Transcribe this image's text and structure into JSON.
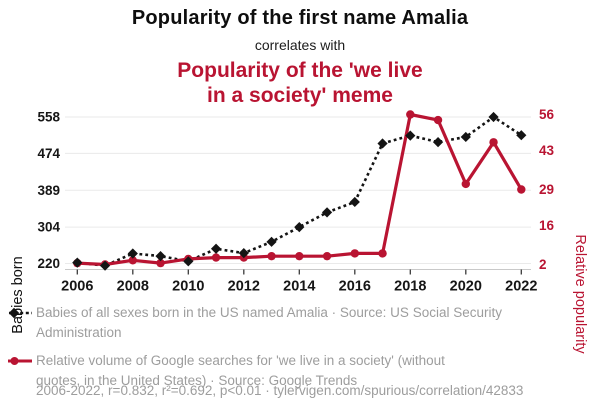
{
  "header": {
    "title": "Popularity of the first name Amalia",
    "subtitle": "correlates with",
    "secondary_title_line1": "Popularity of the 'we live",
    "secondary_title_line2": "in a society' meme"
  },
  "colors": {
    "accent_red": "#b91432",
    "series_black": "#141414",
    "gray_text": "#9d9d9d",
    "gridline": "#eaeaea",
    "axis_line": "#c9c9c9",
    "tick_mark": "#3a3a3a",
    "tick_label": "#161616"
  },
  "chart_data": {
    "type": "line",
    "x": [
      2006,
      2007,
      2008,
      2009,
      2010,
      2011,
      2012,
      2013,
      2014,
      2015,
      2016,
      2017,
      2018,
      2019,
      2020,
      2021,
      2022
    ],
    "series": [
      {
        "name": "Babies of all sexes born in the US named Amalia",
        "axis": "left",
        "style": "dashed",
        "marker": "diamond",
        "color": "#141414",
        "values": [
          222,
          215,
          243,
          237,
          225,
          254,
          244,
          270,
          304,
          338,
          362,
          497,
          515,
          500,
          512,
          558,
          516
        ]
      },
      {
        "name": "Relative volume of Google searches for 'we live in a society'",
        "axis": "right",
        "style": "solid",
        "marker": "circle",
        "color": "#b91432",
        "values": [
          2.5,
          2,
          3.5,
          2.5,
          4,
          4.5,
          4.5,
          5,
          5,
          5,
          6,
          6,
          56,
          54,
          31,
          46,
          29
        ]
      }
    ],
    "left_axis": {
      "label": "Babies born",
      "ticks": [
        220,
        304,
        389,
        474,
        558
      ],
      "range": [
        220,
        558
      ]
    },
    "right_axis": {
      "label": "Relative popularity",
      "ticks": [
        2,
        16,
        29,
        43,
        56
      ],
      "range": [
        2,
        56
      ]
    },
    "x_axis": {
      "tick_years": [
        2006,
        2008,
        2010,
        2012,
        2014,
        2016,
        2018,
        2020,
        2022
      ]
    },
    "grid": "horizontal",
    "legend_position": "bottom"
  },
  "legend": {
    "items": [
      {
        "icon": "black-diamond-dashed-line",
        "lines": [
          "Babies of all sexes born in the US named Amalia · Source: US Social Security",
          "Administration"
        ]
      },
      {
        "icon": "red-circle-solid-line",
        "lines": [
          "Relative volume of Google searches for 'we live in a society' (without",
          "quotes, in the United States) · Source: Google Trends"
        ]
      }
    ]
  },
  "footer": {
    "stats": "2006-2022, r=0.832, r²=0.692, p<0.01 · tylervigen.com/spurious/correlation/42833"
  }
}
